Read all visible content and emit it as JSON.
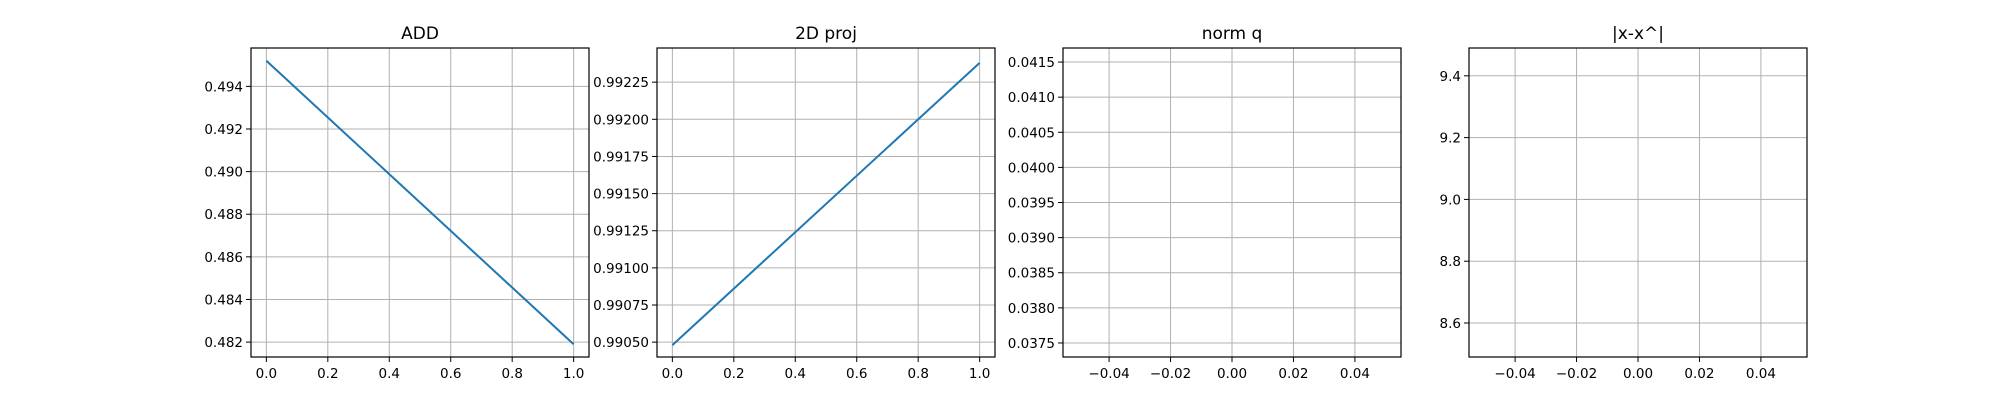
{
  "chart_data": [
    {
      "type": "line",
      "title": "ADD",
      "xlim": [
        -0.05,
        1.05
      ],
      "ylim": [
        0.4813,
        0.4958
      ],
      "xticks": [
        "0.0",
        "0.2",
        "0.4",
        "0.6",
        "0.8",
        "1.0"
      ],
      "yticks": [
        "0.482",
        "0.484",
        "0.486",
        "0.488",
        "0.490",
        "0.492",
        "0.494"
      ],
      "grid": true,
      "color": "#1f77b4",
      "series": [
        {
          "x": [
            0,
            1
          ],
          "y": [
            0.4952,
            0.4819
          ]
        }
      ]
    },
    {
      "type": "line",
      "title": "2D proj",
      "xlim": [
        -0.05,
        1.05
      ],
      "ylim": [
        0.9904,
        0.99248
      ],
      "xticks": [
        "0.0",
        "0.2",
        "0.4",
        "0.6",
        "0.8",
        "1.0"
      ],
      "yticks": [
        "0.99050",
        "0.99075",
        "0.99100",
        "0.99125",
        "0.99150",
        "0.99175",
        "0.99200",
        "0.99225"
      ],
      "grid": true,
      "color": "#1f77b4",
      "series": [
        {
          "x": [
            0,
            1
          ],
          "y": [
            0.99048,
            0.99238
          ]
        }
      ]
    },
    {
      "type": "line",
      "title": "norm q",
      "xlim": [
        -0.055,
        0.055
      ],
      "ylim": [
        0.0373,
        0.0417
      ],
      "xticks": [
        "−0.04",
        "−0.02",
        "0.00",
        "0.02",
        "0.04"
      ],
      "yticks": [
        "0.0375",
        "0.0380",
        "0.0385",
        "0.0390",
        "0.0395",
        "0.0400",
        "0.0405",
        "0.0410",
        "0.0415"
      ],
      "grid": true,
      "color": "#1f77b4",
      "series": [
        {
          "x": [],
          "y": []
        }
      ]
    },
    {
      "type": "line",
      "title": "|x-x^|",
      "xlim": [
        -0.055,
        0.055
      ],
      "ylim": [
        8.49,
        9.49
      ],
      "xticks": [
        "−0.04",
        "−0.02",
        "0.00",
        "0.02",
        "0.04"
      ],
      "yticks": [
        "8.6",
        "8.8",
        "9.0",
        "9.2",
        "9.4"
      ],
      "grid": true,
      "color": "#1f77b4",
      "series": [
        {
          "x": [],
          "y": []
        }
      ]
    }
  ]
}
